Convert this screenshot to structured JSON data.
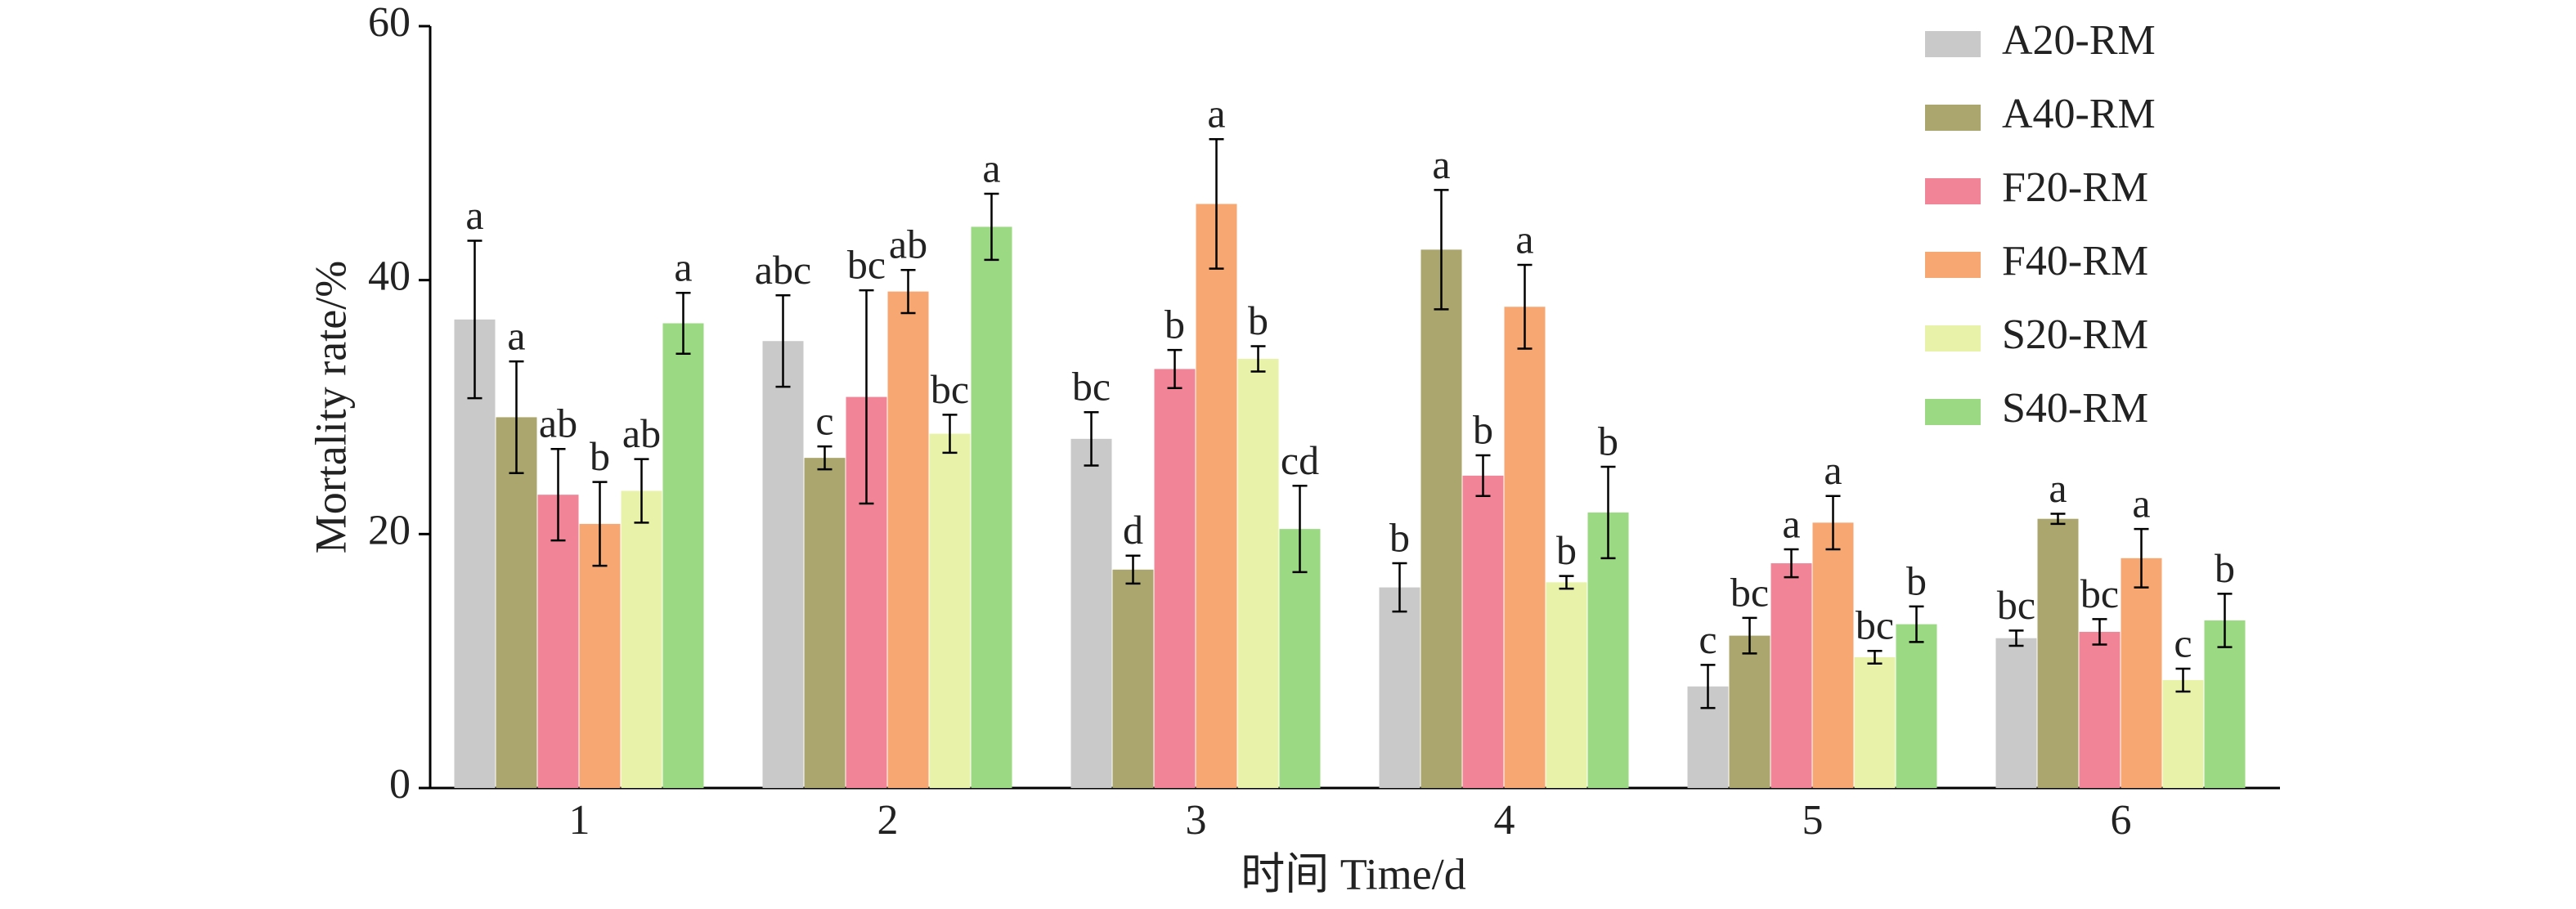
{
  "chart_data": {
    "type": "bar",
    "x_label": "时间 Time/d",
    "y_label": "Mortality rate/%",
    "categories": [
      "1",
      "2",
      "3",
      "4",
      "5",
      "6"
    ],
    "ylim": [
      0,
      60
    ],
    "yticks": [
      0,
      20,
      40,
      60
    ],
    "legend": "top-right",
    "series": [
      {
        "name": "A20-RM",
        "color": "#c9c9c9",
        "values": [
          36.9,
          35.2,
          27.5,
          15.8,
          8.0,
          11.8
        ],
        "errors": [
          6.2,
          3.6,
          2.1,
          1.9,
          1.7,
          0.6
        ],
        "labels": [
          "a",
          "abc",
          "bc",
          "b",
          "c",
          "bc"
        ]
      },
      {
        "name": "A40-RM",
        "color": "#aba66d",
        "values": [
          29.2,
          26.0,
          17.2,
          42.4,
          12.0,
          21.2
        ],
        "errors": [
          4.4,
          0.9,
          1.1,
          4.7,
          1.4,
          0.4
        ],
        "labels": [
          "a",
          "c",
          "d",
          "a",
          "bc",
          "a"
        ]
      },
      {
        "name": "F20-RM",
        "color": "#f28497",
        "values": [
          23.1,
          30.8,
          33.0,
          24.6,
          17.7,
          12.3
        ],
        "errors": [
          3.6,
          8.4,
          1.5,
          1.6,
          1.1,
          1.0
        ],
        "labels": [
          "ab",
          "bc",
          "b",
          "b",
          "a",
          "bc"
        ]
      },
      {
        "name": "F40-RM",
        "color": "#f7a771",
        "values": [
          20.8,
          39.1,
          46.0,
          37.9,
          20.9,
          18.1
        ],
        "errors": [
          3.3,
          1.7,
          5.1,
          3.3,
          2.1,
          2.3
        ],
        "labels": [
          "b",
          "ab",
          "a",
          "a",
          "a",
          "a"
        ]
      },
      {
        "name": "S20-RM",
        "color": "#e8f2a9",
        "values": [
          23.4,
          27.9,
          33.8,
          16.2,
          10.3,
          8.5
        ],
        "errors": [
          2.5,
          1.5,
          1.0,
          0.5,
          0.5,
          0.9
        ],
        "labels": [
          "ab",
          "bc",
          "b",
          "b",
          "bc",
          "c"
        ]
      },
      {
        "name": "S40-RM",
        "color": "#9bd983",
        "values": [
          36.6,
          44.2,
          20.4,
          21.7,
          12.9,
          13.2
        ],
        "errors": [
          2.4,
          2.6,
          3.4,
          3.6,
          1.4,
          2.1
        ],
        "labels": [
          "a",
          "a",
          "cd",
          "b",
          "b",
          "b"
        ]
      }
    ]
  }
}
